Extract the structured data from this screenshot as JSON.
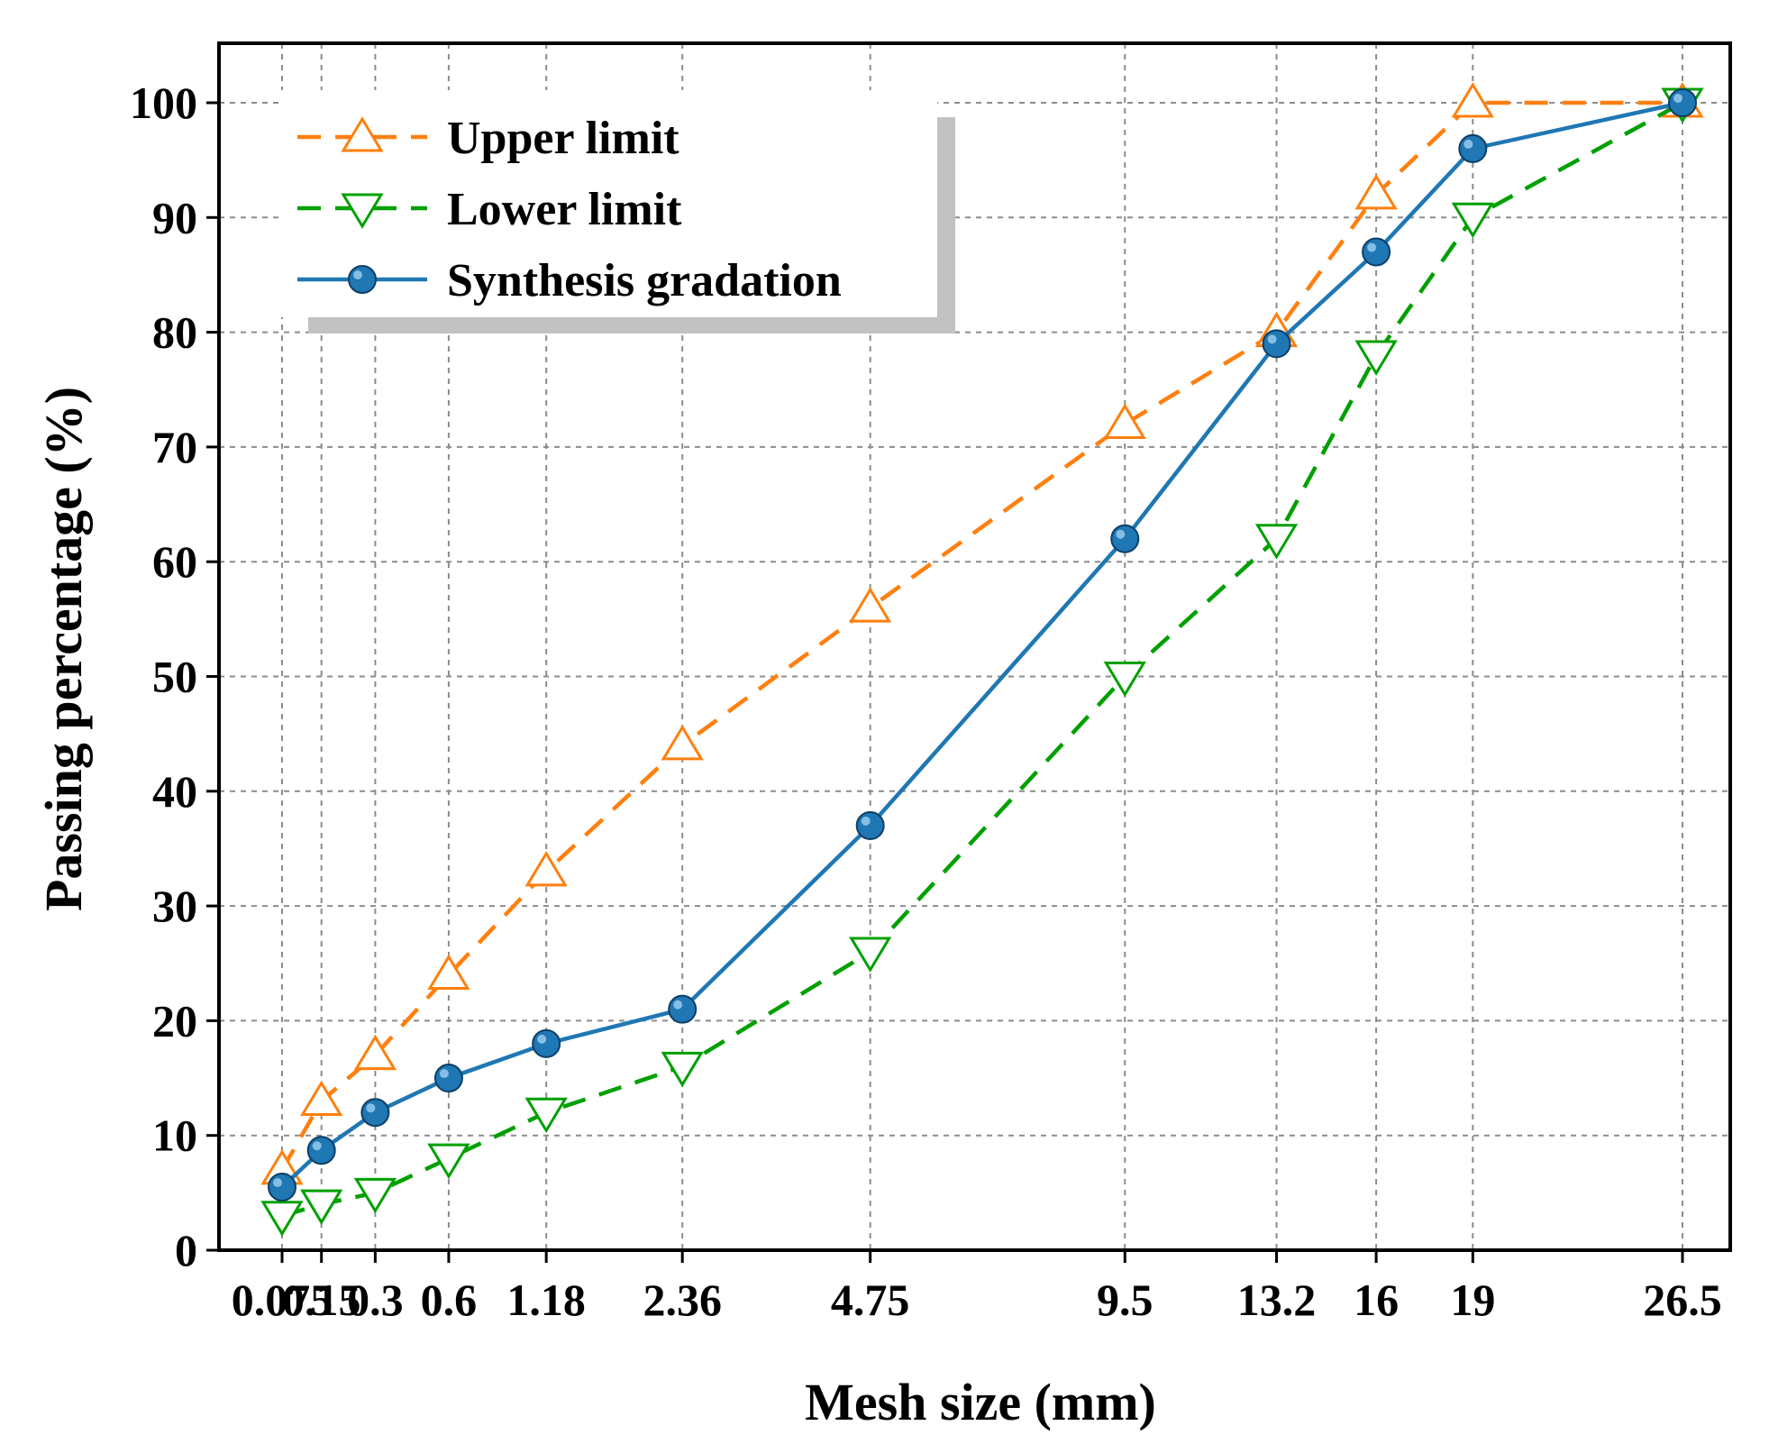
{
  "chart_data": {
    "type": "line",
    "title": "",
    "xlabel": "Mesh size (mm)",
    "ylabel": "Passing percentage (%)",
    "x_scale": "power-0.45",
    "categories": [
      "0.075",
      "0.15",
      "0.3",
      "0.6",
      "1.18",
      "2.36",
      "4.75",
      "9.5",
      "13.2",
      "16",
      "19",
      "26.5"
    ],
    "x_values": [
      0.075,
      0.15,
      0.3,
      0.6,
      1.18,
      2.36,
      4.75,
      9.5,
      13.2,
      16,
      19,
      26.5
    ],
    "ylim": [
      0,
      104
    ],
    "yticks": [
      0,
      10,
      20,
      30,
      40,
      50,
      60,
      70,
      80,
      90,
      100
    ],
    "grid": true,
    "legend_position": "top-left",
    "series": [
      {
        "name": "Upper limit",
        "color": "#ff7f0e",
        "line_style": "dashed",
        "marker": "open-triangle-up",
        "values": [
          7,
          13,
          17,
          24,
          33,
          44,
          56,
          72,
          80,
          92,
          100,
          100
        ]
      },
      {
        "name": "Lower limit",
        "color": "#00a000",
        "line_style": "dashed",
        "marker": "open-triangle-down",
        "values": [
          3,
          4,
          5,
          8,
          12,
          16,
          26,
          50,
          62,
          78,
          90,
          100
        ]
      },
      {
        "name": "Synthesis gradation",
        "color": "#1f77b4",
        "line_style": "solid",
        "marker": "filled-circle",
        "values": [
          5.5,
          8.7,
          12,
          15,
          18,
          21,
          37,
          62,
          79,
          87,
          96,
          100
        ]
      }
    ]
  }
}
